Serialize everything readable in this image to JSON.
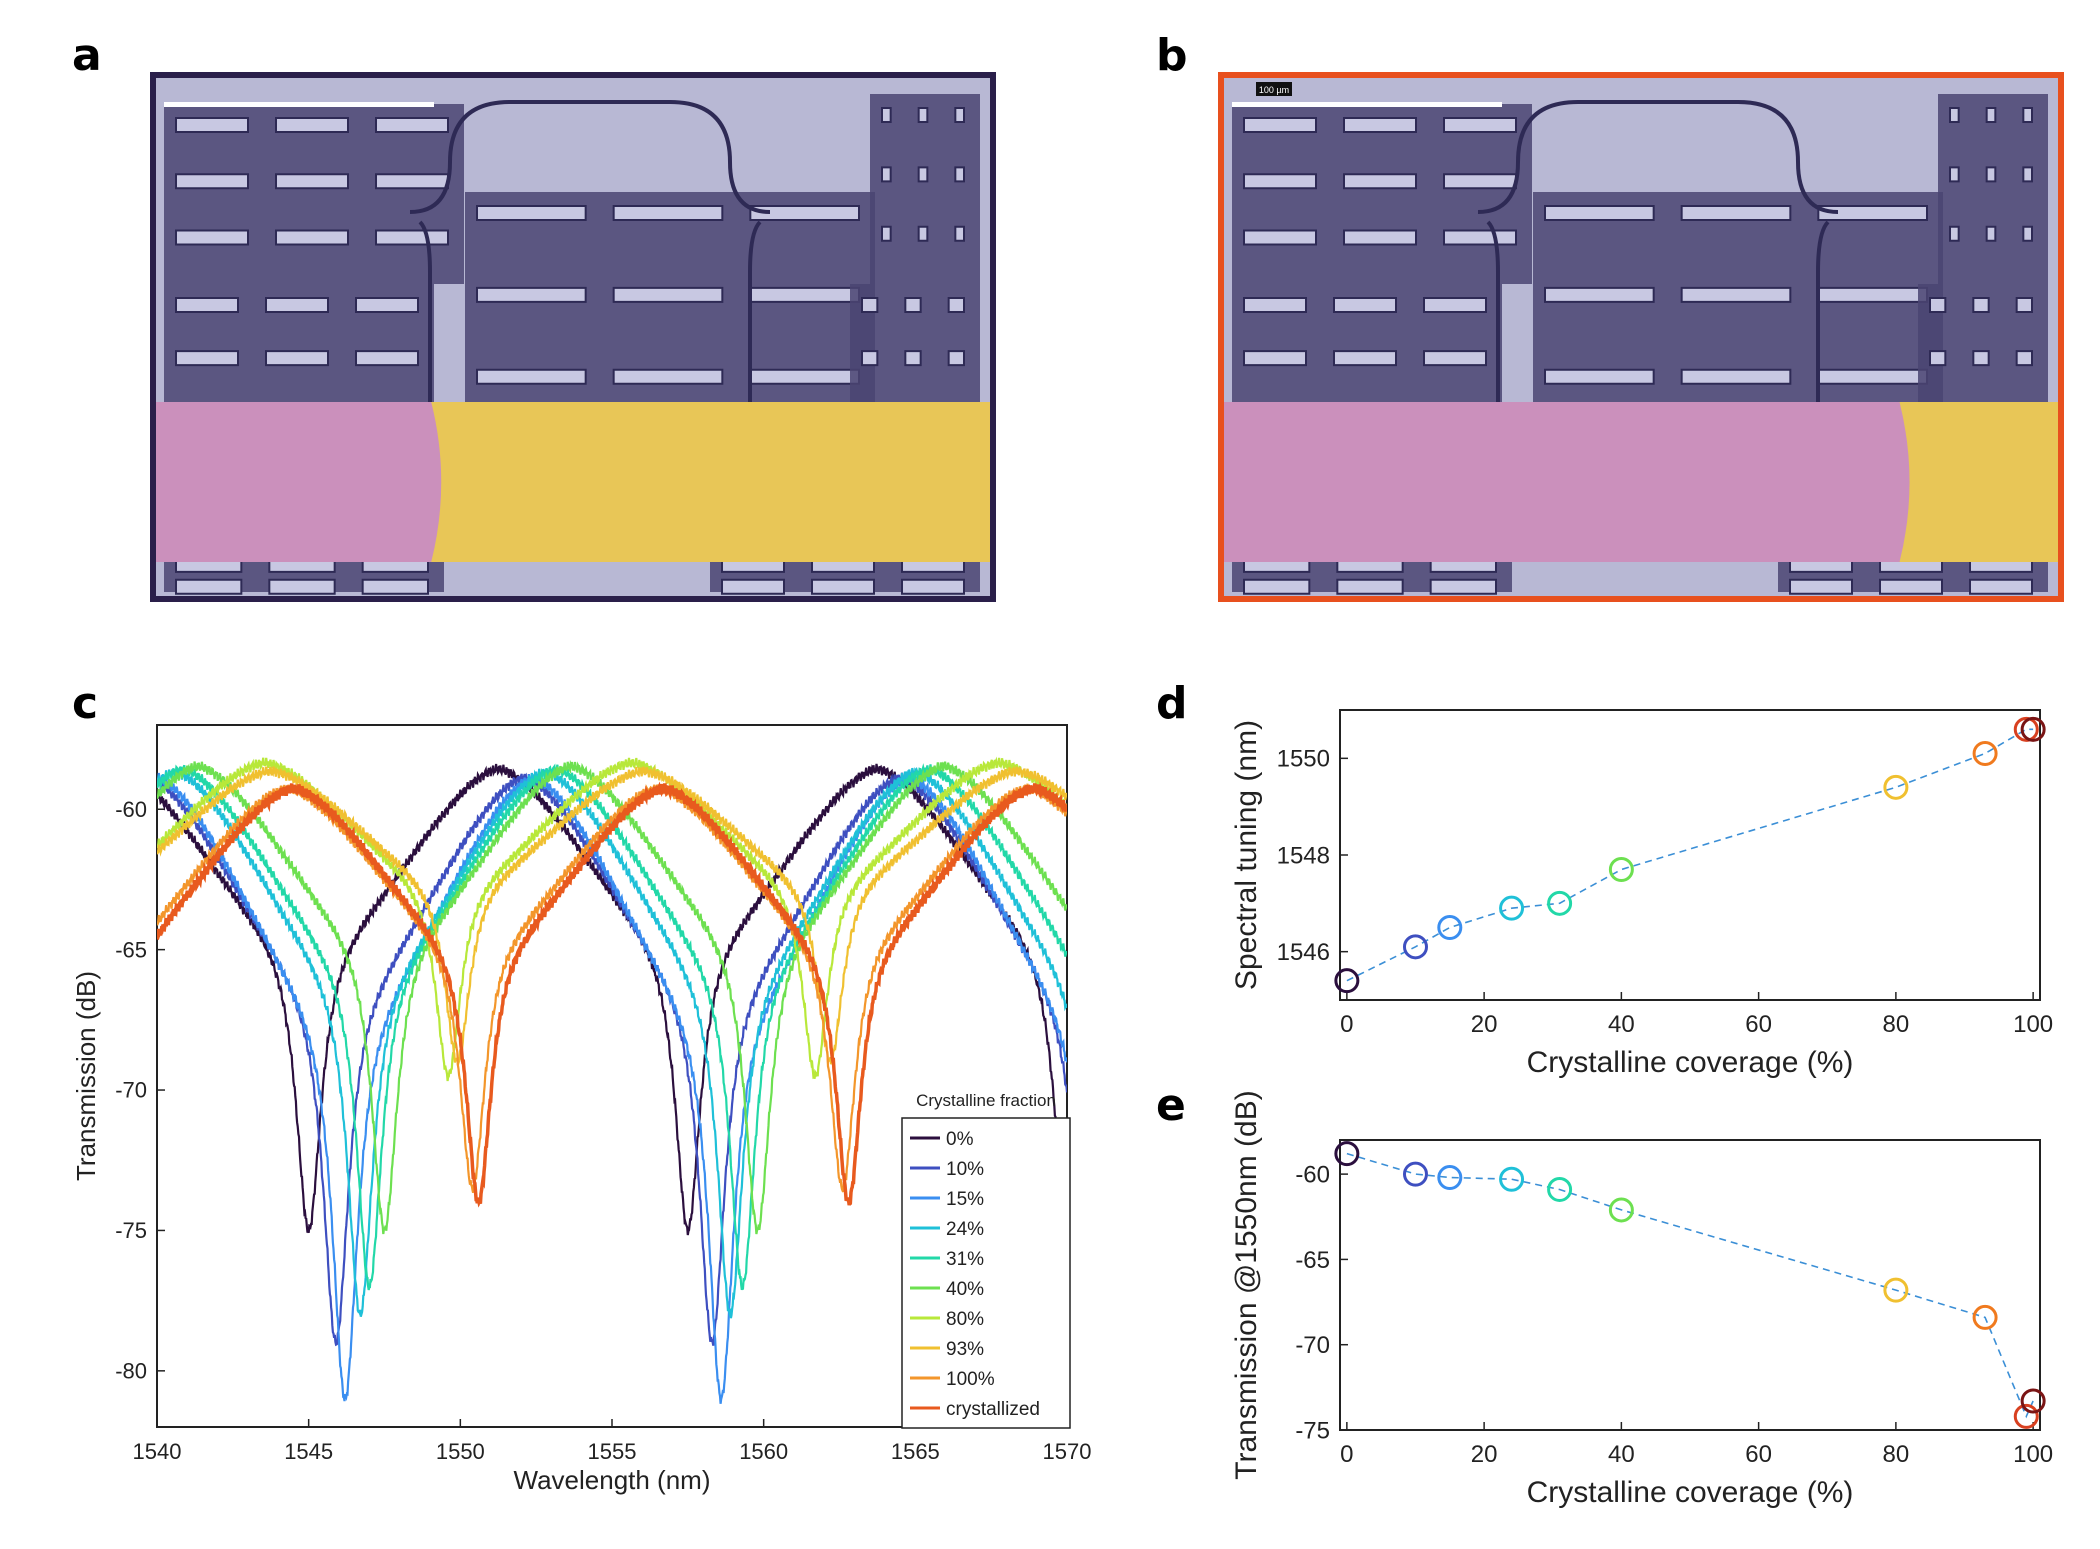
{
  "panels": {
    "a": "a",
    "b": "b",
    "c": "c",
    "d": "d",
    "e": "e"
  },
  "micrographs": {
    "a": {
      "border_color": "#2a1f4a",
      "crystalline_fraction": 0.33
    },
    "b": {
      "border_color": "#e8501e",
      "crystalline_fraction": 0.81,
      "scale_label": "100 µm"
    }
  },
  "chart_data": [
    {
      "id": "c",
      "type": "line",
      "xlabel": "Wavelength (nm)",
      "ylabel": "Transmission (dB)",
      "xlim": [
        1540,
        1570
      ],
      "ylim": [
        -82,
        -57
      ],
      "xticks": [
        1540,
        1545,
        1550,
        1555,
        1560,
        1565,
        1570
      ],
      "yticks": [
        -60,
        -65,
        -70,
        -75,
        -80
      ],
      "legend_title": "Crystalline fraction",
      "legend_position": "bottom-right",
      "series": [
        {
          "name": "0%",
          "color": "#2b0f3e",
          "peak": -58.5,
          "dips": [
            [
              1545.0,
              -75.0
            ],
            [
              1557.5,
              -74.0
            ]
          ]
        },
        {
          "name": "10%",
          "color": "#3e4fc0",
          "peak": -58.8,
          "dips": [
            [
              1545.9,
              -79.0
            ],
            [
              1558.3,
              -78.0
            ]
          ]
        },
        {
          "name": "15%",
          "color": "#3a8ef0",
          "peak": -58.8,
          "dips": [
            [
              1546.2,
              -81.0
            ],
            [
              1558.6,
              -79.5
            ]
          ]
        },
        {
          "name": "24%",
          "color": "#1fc0d8",
          "peak": -58.6,
          "dips": [
            [
              1546.7,
              -78.0
            ],
            [
              1558.9,
              -81.0
            ]
          ]
        },
        {
          "name": "31%",
          "color": "#22d8a8",
          "peak": -58.5,
          "dips": [
            [
              1547.0,
              -77.0
            ],
            [
              1559.3,
              -79.0
            ]
          ]
        },
        {
          "name": "40%",
          "color": "#6de050",
          "peak": -58.4,
          "dips": [
            [
              1547.5,
              -75.0
            ],
            [
              1559.8,
              -77.0
            ]
          ]
        },
        {
          "name": "80%",
          "color": "#b8e83a",
          "peak": -58.3,
          "dips": [
            [
              1549.6,
              -69.5
            ],
            [
              1561.7,
              -73.0
            ]
          ]
        },
        {
          "name": "93%",
          "color": "#f0c030",
          "peak": -58.6,
          "dips": [
            [
              1549.9,
              -69.0
            ],
            [
              1562.2,
              -68.0
            ]
          ]
        },
        {
          "name": "100%",
          "color": "#f3962b",
          "peak": -59.2,
          "dips": [
            [
              1550.4,
              -73.5
            ],
            [
              1562.6,
              -72.5
            ]
          ]
        },
        {
          "name": "crystallized",
          "color": "#e85a1e",
          "peak": -59.2,
          "dips": [
            [
              1550.6,
              -74.0
            ],
            [
              1562.8,
              -73.0
            ]
          ]
        }
      ]
    },
    {
      "id": "d",
      "type": "scatter",
      "xlabel": "Crystalline coverage (%)",
      "ylabel": "Spectral tuning (nm)",
      "xlim": [
        -1,
        101
      ],
      "ylim": [
        1545,
        1551
      ],
      "xticks": [
        0,
        20,
        40,
        60,
        80,
        100
      ],
      "yticks": [
        1546,
        1548,
        1550
      ],
      "line_color": "#3b8fd6",
      "points": [
        {
          "x": 0,
          "y": 1545.4,
          "color": "#2b0f3e"
        },
        {
          "x": 10,
          "y": 1546.1,
          "color": "#3e4fc0"
        },
        {
          "x": 15,
          "y": 1546.5,
          "color": "#3a8ef0"
        },
        {
          "x": 24,
          "y": 1546.9,
          "color": "#1fc0d8"
        },
        {
          "x": 31,
          "y": 1547.0,
          "color": "#22d8a8"
        },
        {
          "x": 40,
          "y": 1547.7,
          "color": "#6de050"
        },
        {
          "x": 80,
          "y": 1549.4,
          "color": "#f0c030"
        },
        {
          "x": 93,
          "y": 1550.1,
          "color": "#f07a1e"
        },
        {
          "x": 99,
          "y": 1550.6,
          "color": "#d84020"
        },
        {
          "x": 100,
          "y": 1550.6,
          "color": "#7a1414"
        }
      ]
    },
    {
      "id": "e",
      "type": "scatter",
      "xlabel": "Crystalline coverage (%)",
      "ylabel": "Transmission @1550nm (dB)",
      "xlim": [
        -1,
        101
      ],
      "ylim": [
        -75,
        -58
      ],
      "xticks": [
        0,
        20,
        40,
        60,
        80,
        100
      ],
      "yticks": [
        -60,
        -65,
        -70,
        -75
      ],
      "line_color": "#3b8fd6",
      "points": [
        {
          "x": 0,
          "y": -58.8,
          "color": "#2b0f3e"
        },
        {
          "x": 10,
          "y": -60.0,
          "color": "#3e4fc0"
        },
        {
          "x": 15,
          "y": -60.2,
          "color": "#3a8ef0"
        },
        {
          "x": 24,
          "y": -60.3,
          "color": "#1fc0d8"
        },
        {
          "x": 31,
          "y": -60.9,
          "color": "#22d8a8"
        },
        {
          "x": 40,
          "y": -62.1,
          "color": "#6de050"
        },
        {
          "x": 80,
          "y": -66.8,
          "color": "#f0c030"
        },
        {
          "x": 93,
          "y": -68.4,
          "color": "#f07a1e"
        },
        {
          "x": 99,
          "y": -74.2,
          "color": "#d84020"
        },
        {
          "x": 100,
          "y": -73.3,
          "color": "#7a1414"
        }
      ]
    }
  ]
}
